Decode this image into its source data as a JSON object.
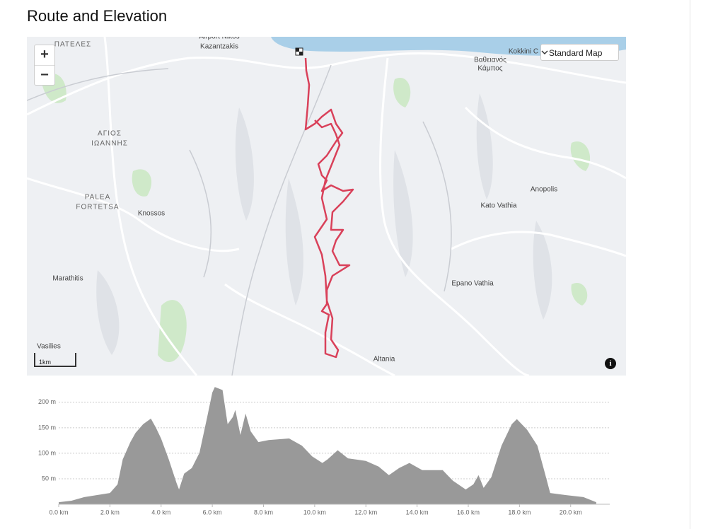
{
  "header": {
    "title": "Route and Elevation"
  },
  "map": {
    "controls": {
      "zoom_in": "+",
      "zoom_out": "−",
      "map_style": "Standard Map",
      "scale": "1km",
      "info": "i"
    },
    "labels": [
      {
        "text": "ΠΑΤΕΛΕΣ",
        "caps": true
      },
      {
        "text": "Airport Nikos",
        "caps": false
      },
      {
        "text": "Kazantzakis",
        "caps": false
      },
      {
        "text": "ΑΓΙΟΣ",
        "caps": true
      },
      {
        "text": "ΙΩΑΝΝΗΣ",
        "caps": true
      },
      {
        "text": "PALEA",
        "caps": true
      },
      {
        "text": "FORTETSA",
        "caps": true
      },
      {
        "text": "Knossos",
        "caps": false
      },
      {
        "text": "Marathitis",
        "caps": false
      },
      {
        "text": "Vasilies",
        "caps": false
      },
      {
        "text": "Βαθειανός",
        "caps": false
      },
      {
        "text": "Κάμπος",
        "caps": false
      },
      {
        "text": "Kokkini C",
        "caps": false
      },
      {
        "text": "Anopolis",
        "caps": false
      },
      {
        "text": "Kato Vathia",
        "caps": false
      },
      {
        "text": "Epano Vathia",
        "caps": false
      },
      {
        "text": "Altania",
        "caps": false
      }
    ]
  },
  "chart_data": {
    "type": "area",
    "color": "#999999",
    "x": [
      0,
      0.5,
      1.0,
      1.5,
      2.0,
      2.3,
      2.5,
      2.8,
      3.0,
      3.3,
      3.6,
      3.8,
      4.0,
      4.3,
      4.6,
      4.7,
      4.9,
      5.2,
      5.5,
      5.8,
      6.0,
      6.1,
      6.4,
      6.6,
      6.8,
      6.9,
      7.1,
      7.3,
      7.5,
      7.8,
      8.2,
      9.0,
      9.5,
      9.9,
      10.3,
      10.5,
      10.9,
      11.3,
      12.0,
      12.5,
      12.9,
      13.3,
      13.7,
      14.2,
      15.0,
      15.4,
      15.9,
      16.2,
      16.4,
      16.6,
      16.9,
      17.3,
      17.7,
      17.9,
      18.3,
      18.7,
      19.0,
      19.2,
      19.8,
      20.5,
      21.0
    ],
    "values": [
      4,
      7,
      14,
      18,
      22,
      39,
      88,
      122,
      140,
      157,
      168,
      150,
      129,
      88,
      42,
      29,
      60,
      71,
      101,
      171,
      219,
      230,
      224,
      157,
      171,
      185,
      136,
      178,
      143,
      122,
      126,
      129,
      115,
      94,
      81,
      88,
      106,
      90,
      85,
      74,
      57,
      71,
      81,
      67,
      67,
      46,
      29,
      39,
      57,
      32,
      53,
      115,
      157,
      167,
      146,
      115,
      60,
      22,
      18,
      14,
      4
    ],
    "xlim": [
      0,
      21.2
    ],
    "ylim": [
      0,
      240
    ],
    "xticks": [
      {
        "value": 0,
        "label": "0.0 km"
      },
      {
        "value": 2,
        "label": "2.0 km"
      },
      {
        "value": 4,
        "label": "4.0 km"
      },
      {
        "value": 6,
        "label": "6.0 km"
      },
      {
        "value": 8,
        "label": "8.0 km"
      },
      {
        "value": 10,
        "label": "10.0 km"
      },
      {
        "value": 12,
        "label": "12.0 km"
      },
      {
        "value": 14,
        "label": "14.0 km"
      },
      {
        "value": 16,
        "label": "16.0 km"
      },
      {
        "value": 18,
        "label": "18.0 km"
      },
      {
        "value": 20,
        "label": "20.0 km"
      }
    ],
    "yticks": [
      {
        "value": 50,
        "label": "50 m"
      },
      {
        "value": 100,
        "label": "100 m"
      },
      {
        "value": 150,
        "label": "150 m"
      },
      {
        "value": 200,
        "label": "200 m"
      }
    ],
    "grid": true
  }
}
